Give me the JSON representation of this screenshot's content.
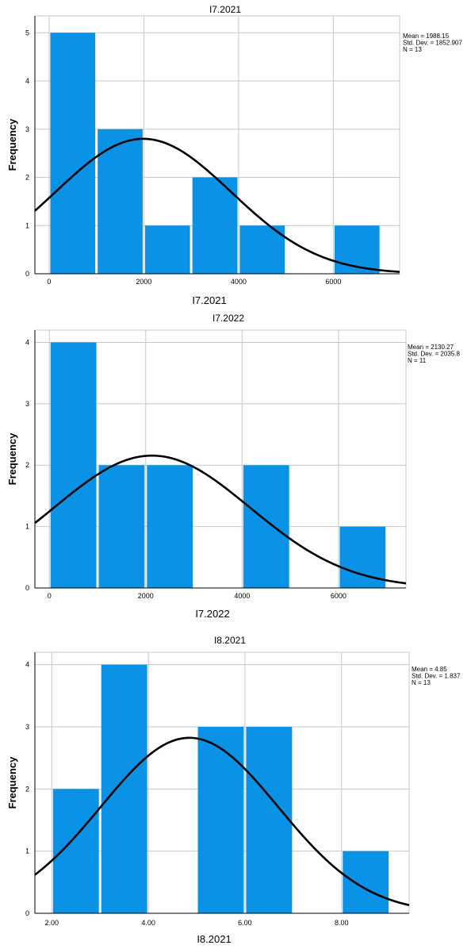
{
  "colors": {
    "bar": "#0a93e6",
    "grid": "#c8c8c8",
    "curve": "#000000",
    "axis": "#000000"
  },
  "chart_data": [
    {
      "type": "bar",
      "title": "I7.2021",
      "xlabel": "I7.2021",
      "ylabel": "Frequency",
      "bin_edges": [
        0,
        1000,
        2000,
        3000,
        4000,
        5000,
        6000,
        7000
      ],
      "values": [
        5,
        3,
        1,
        2,
        1,
        0,
        1
      ],
      "xlim": [
        -300,
        7400
      ],
      "ylim": [
        0,
        5.35
      ],
      "x_ticks": [
        0,
        2000,
        4000,
        6000
      ],
      "x_tick_labels": [
        "0",
        "2000",
        "4000",
        "6000"
      ],
      "y_ticks": [
        0,
        1,
        2,
        3,
        4,
        5
      ],
      "y_tick_labels": [
        "0",
        "1",
        "2",
        "3",
        "4",
        "5"
      ],
      "grid": true,
      "normal_curve": {
        "mean": 1988.15,
        "sd": 1852.907,
        "n": 13,
        "bin_width": 1000
      },
      "stats": [
        "Mean = 1988.15",
        "Std. Dev. = 1852.907",
        "N = 13"
      ]
    },
    {
      "type": "bar",
      "title": "I7.2022",
      "xlabel": "I7.2022",
      "ylabel": "Frequency",
      "bin_edges": [
        0,
        1000,
        2000,
        3000,
        4000,
        5000,
        6000,
        7000
      ],
      "values": [
        4,
        2,
        2,
        0,
        2,
        0,
        1
      ],
      "xlim": [
        -300,
        7400
      ],
      "ylim": [
        0,
        4.2
      ],
      "x_ticks": [
        0,
        2000,
        4000,
        6000
      ],
      "x_tick_labels": [
        "0",
        "2000",
        "4000",
        "6000"
      ],
      "y_ticks": [
        0,
        1,
        2,
        3,
        4
      ],
      "y_tick_labels": [
        "0",
        "1",
        "2",
        "3",
        "4"
      ],
      "grid": true,
      "normal_curve": {
        "mean": 2130.27,
        "sd": 2035.8,
        "n": 11,
        "bin_width": 1000
      },
      "stats": [
        "Mean = 2130.27",
        "Std. Dev. = 2035.8",
        "N = 11"
      ]
    },
    {
      "type": "bar",
      "title": "I8.2021",
      "xlabel": "I8.2021",
      "ylabel": "Frequency",
      "bin_edges": [
        2,
        3,
        4,
        5,
        6,
        7,
        8,
        9
      ],
      "values": [
        2,
        4,
        0,
        3,
        3,
        0,
        1
      ],
      "xlim": [
        1.65,
        9.4
      ],
      "ylim": [
        0,
        4.2
      ],
      "x_ticks": [
        2,
        4,
        6,
        8
      ],
      "x_tick_labels": [
        "2.00",
        "4.00",
        "6.00",
        "8.00"
      ],
      "y_ticks": [
        0,
        1,
        2,
        3,
        4
      ],
      "y_tick_labels": [
        "0",
        "1",
        "2",
        "3",
        "4"
      ],
      "grid": true,
      "normal_curve": {
        "mean": 4.85,
        "sd": 1.837,
        "n": 13,
        "bin_width": 1
      },
      "stats": [
        "Mean = 4.85",
        "Std. Dev. = 1.837",
        "N = 13"
      ]
    }
  ]
}
